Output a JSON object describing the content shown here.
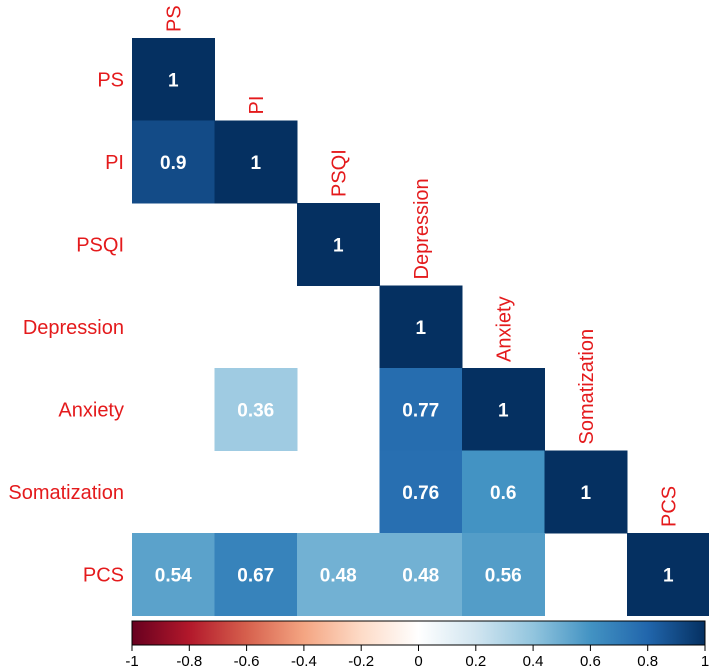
{
  "chart_data": {
    "type": "heatmap",
    "variables": [
      "PS",
      "PI",
      "PSQI",
      "Depression",
      "Anxiety",
      "Somatization",
      "PCS"
    ],
    "cells": [
      {
        "row": 0,
        "col": 0,
        "value": 1,
        "label": "1"
      },
      {
        "row": 1,
        "col": 0,
        "value": 0.9,
        "label": "0.9"
      },
      {
        "row": 1,
        "col": 1,
        "value": 1,
        "label": "1"
      },
      {
        "row": 2,
        "col": 2,
        "value": 1,
        "label": "1"
      },
      {
        "row": 3,
        "col": 3,
        "value": 1,
        "label": "1"
      },
      {
        "row": 4,
        "col": 1,
        "value": 0.36,
        "label": "0.36"
      },
      {
        "row": 4,
        "col": 3,
        "value": 0.77,
        "label": "0.77"
      },
      {
        "row": 4,
        "col": 4,
        "value": 1,
        "label": "1"
      },
      {
        "row": 5,
        "col": 3,
        "value": 0.76,
        "label": "0.76"
      },
      {
        "row": 5,
        "col": 4,
        "value": 0.6,
        "label": "0.6"
      },
      {
        "row": 5,
        "col": 5,
        "value": 1,
        "label": "1"
      },
      {
        "row": 6,
        "col": 0,
        "value": 0.54,
        "label": "0.54"
      },
      {
        "row": 6,
        "col": 1,
        "value": 0.67,
        "label": "0.67"
      },
      {
        "row": 6,
        "col": 2,
        "value": 0.48,
        "label": "0.48"
      },
      {
        "row": 6,
        "col": 3,
        "value": 0.48,
        "label": "0.48"
      },
      {
        "row": 6,
        "col": 4,
        "value": 0.56,
        "label": "0.56"
      },
      {
        "row": 6,
        "col": 6,
        "value": 1,
        "label": "1"
      }
    ],
    "colorbar": {
      "range": [
        -1,
        1
      ],
      "ticks": [
        "-1",
        "-0.8",
        "-0.6",
        "-0.4",
        "-0.2",
        "0",
        "0.2",
        "0.4",
        "0.6",
        "0.8",
        "1"
      ],
      "tick_values": [
        -1,
        -0.8,
        -0.6,
        -0.4,
        -0.2,
        0,
        0.2,
        0.4,
        0.6,
        0.8,
        1
      ],
      "colors": [
        "#67001f",
        "#b2182b",
        "#d6604d",
        "#f4a582",
        "#fddbc7",
        "#ffffff",
        "#d1e5f0",
        "#92c5de",
        "#4393c3",
        "#2166ac",
        "#053061"
      ]
    },
    "label_color": "#e41a1c"
  }
}
